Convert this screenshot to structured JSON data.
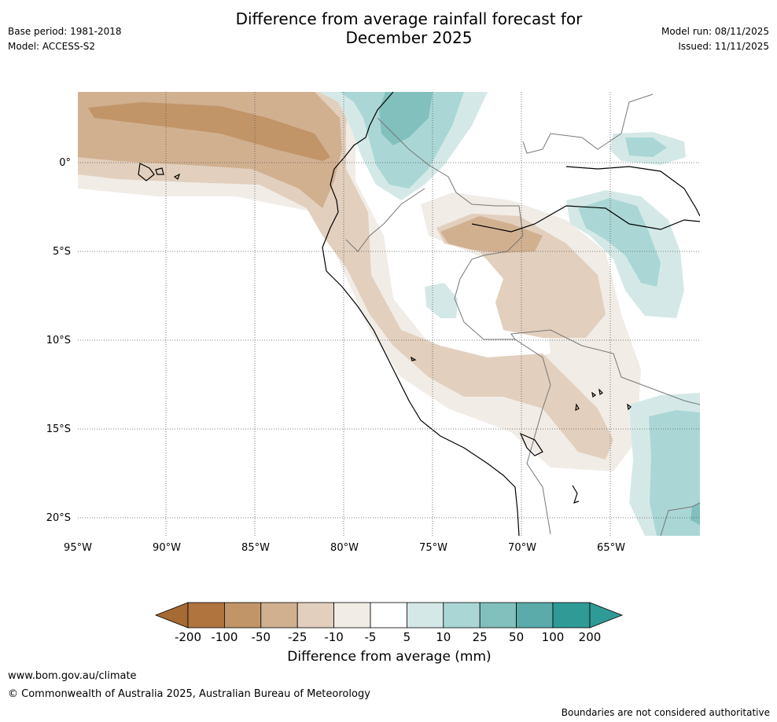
{
  "header": {
    "base_period": "Base period: 1981-2018",
    "model": "Model: ACCESS-S2",
    "title_line1": "Difference from average rainfall forecast for",
    "title_line2": "December 2025",
    "model_run": "Model run: 08/11/2025",
    "issued": "Issued: 11/11/2025"
  },
  "map": {
    "lat_labels": [
      "0°",
      "5°S",
      "10°S",
      "15°S",
      "20°S"
    ],
    "lon_labels": [
      "95°W",
      "90°W",
      "85°W",
      "80°W",
      "75°W",
      "70°W",
      "65°W"
    ],
    "colors": {
      "m200": "#a66a34",
      "m100": "#b0743f",
      "m50": "#c19568",
      "m25": "#d1b090",
      "m10": "#e2cfbd",
      "m5": "#f1ece6",
      "p5": "#ffffff",
      "p10": "#d4e9e7",
      "p25": "#aad7d5",
      "p50": "#81c0bd",
      "p100": "#5aabaa",
      "p200": "#309a96"
    }
  },
  "colorbar": {
    "ticks": [
      "-200",
      "-100",
      "-50",
      "-25",
      "-10",
      "-5",
      "5",
      "10",
      "25",
      "50",
      "100",
      "200"
    ],
    "label": "Difference from average (mm)"
  },
  "footer": {
    "url": "www.bom.gov.au/climate",
    "copyright": "© Commonwealth of Australia 2025, Australian Bureau of Meteorology",
    "disclaimer": "Boundaries are not considered authoritative"
  }
}
